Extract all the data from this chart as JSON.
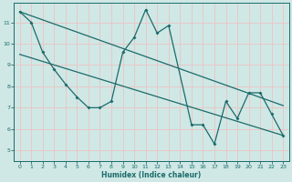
{
  "xlabel": "Humidex (Indice chaleur)",
  "xlim": [
    -0.5,
    23.5
  ],
  "ylim": [
    4.5,
    11.9
  ],
  "xticks": [
    0,
    1,
    2,
    3,
    4,
    5,
    6,
    7,
    8,
    9,
    10,
    11,
    12,
    13,
    14,
    15,
    16,
    17,
    18,
    19,
    20,
    21,
    22,
    23
  ],
  "yticks": [
    5,
    6,
    7,
    8,
    9,
    10,
    11
  ],
  "bg_color": "#cfe8e5",
  "line_color": "#1a6b6b",
  "grid_color": "#e8c8c8",
  "jagged_x": [
    0,
    1,
    2,
    3,
    4,
    5,
    6,
    7,
    8,
    9,
    10,
    11,
    12,
    13,
    15,
    16,
    17,
    18,
    19,
    20,
    21,
    22,
    23
  ],
  "jagged_y": [
    11.5,
    11.0,
    9.6,
    8.8,
    8.1,
    7.5,
    7.0,
    7.0,
    7.3,
    9.6,
    10.3,
    11.6,
    10.5,
    10.85,
    6.2,
    6.2,
    5.3,
    7.3,
    6.5,
    7.7,
    7.7,
    6.7,
    5.7
  ],
  "trend1_x": [
    0,
    23
  ],
  "trend1_y": [
    11.5,
    7.1
  ],
  "trend2_x": [
    0,
    23
  ],
  "trend2_y": [
    9.5,
    5.7
  ],
  "extra_pt1_x": [
    2
  ],
  "extra_pt1_y": [
    9.6
  ],
  "extra_pt2_x": [
    9
  ],
  "extra_pt2_y": [
    9.6
  ]
}
